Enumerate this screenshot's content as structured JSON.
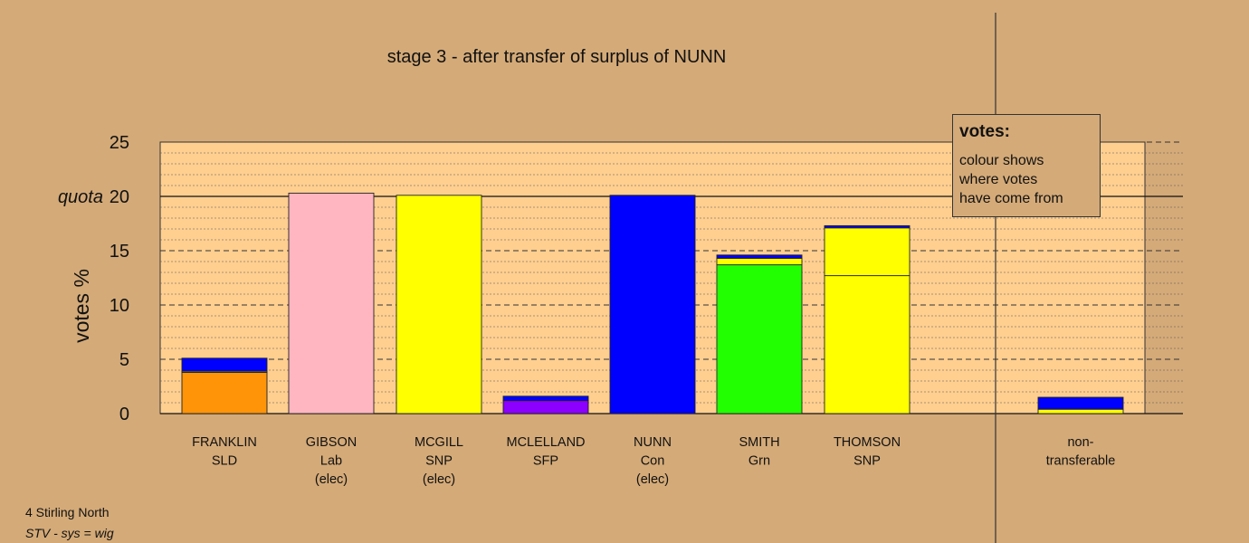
{
  "title": "stage 3 - after transfer of surplus of NUNN",
  "footer": {
    "constituency": "4 Stirling North",
    "system": "STV - sys = wig"
  },
  "legend": {
    "title": "votes:",
    "lines": [
      "colour shows",
      "where votes",
      "have come from"
    ]
  },
  "chart_data": {
    "type": "bar",
    "stacked": true,
    "title": "stage 3 - after transfer of surplus of NUNN",
    "ylabel": "votes %",
    "ylim": [
      0,
      25
    ],
    "yticks": [
      0,
      5,
      10,
      15,
      20,
      25
    ],
    "quota": {
      "label": "quota",
      "value": 20
    },
    "grid": true,
    "legend_position": "top-right",
    "categories": [
      {
        "name": "FRANKLIN",
        "party": "SLD",
        "status": ""
      },
      {
        "name": "GIBSON",
        "party": "Lab",
        "status": "(elec)"
      },
      {
        "name": "MCGILL",
        "party": "SNP",
        "status": "(elec)"
      },
      {
        "name": "MCLELLAND",
        "party": "SFP",
        "status": ""
      },
      {
        "name": "NUNN",
        "party": "Con",
        "status": "(elec)"
      },
      {
        "name": "SMITH",
        "party": "Grn",
        "status": ""
      },
      {
        "name": "THOMSON",
        "party": "SNP",
        "status": ""
      },
      {
        "name": "non-",
        "party": "transferable",
        "status": ""
      }
    ],
    "bars": [
      [
        {
          "value": 3.8,
          "color": "#ff9408"
        },
        {
          "value": 0.1,
          "color": "#ffff00"
        },
        {
          "value": 1.2,
          "color": "#0000ff"
        }
      ],
      [
        {
          "value": 20.3,
          "color": "#ffb6c1"
        }
      ],
      [
        {
          "value": 20.1,
          "color": "#ffff00"
        }
      ],
      [
        {
          "value": 1.2,
          "color": "#8c00ff"
        },
        {
          "value": 0.4,
          "color": "#0000ff"
        }
      ],
      [
        {
          "value": 20.1,
          "color": "#0000ff"
        }
      ],
      [
        {
          "value": 13.7,
          "color": "#22ff00"
        },
        {
          "value": 0.6,
          "color": "#ffff00"
        },
        {
          "value": 0.3,
          "color": "#0000ff"
        }
      ],
      [
        {
          "value": 12.7,
          "color": "#ffff00"
        },
        {
          "value": 4.4,
          "color": "#ffff00"
        },
        {
          "value": 0.2,
          "color": "#0000ff"
        }
      ],
      [
        {
          "value": 0.4,
          "color": "#ffff00"
        },
        {
          "value": 1.1,
          "color": "#0000ff"
        }
      ]
    ],
    "colors": {
      "background": "#d4aa78",
      "plot_area": "#ffcf90"
    }
  }
}
